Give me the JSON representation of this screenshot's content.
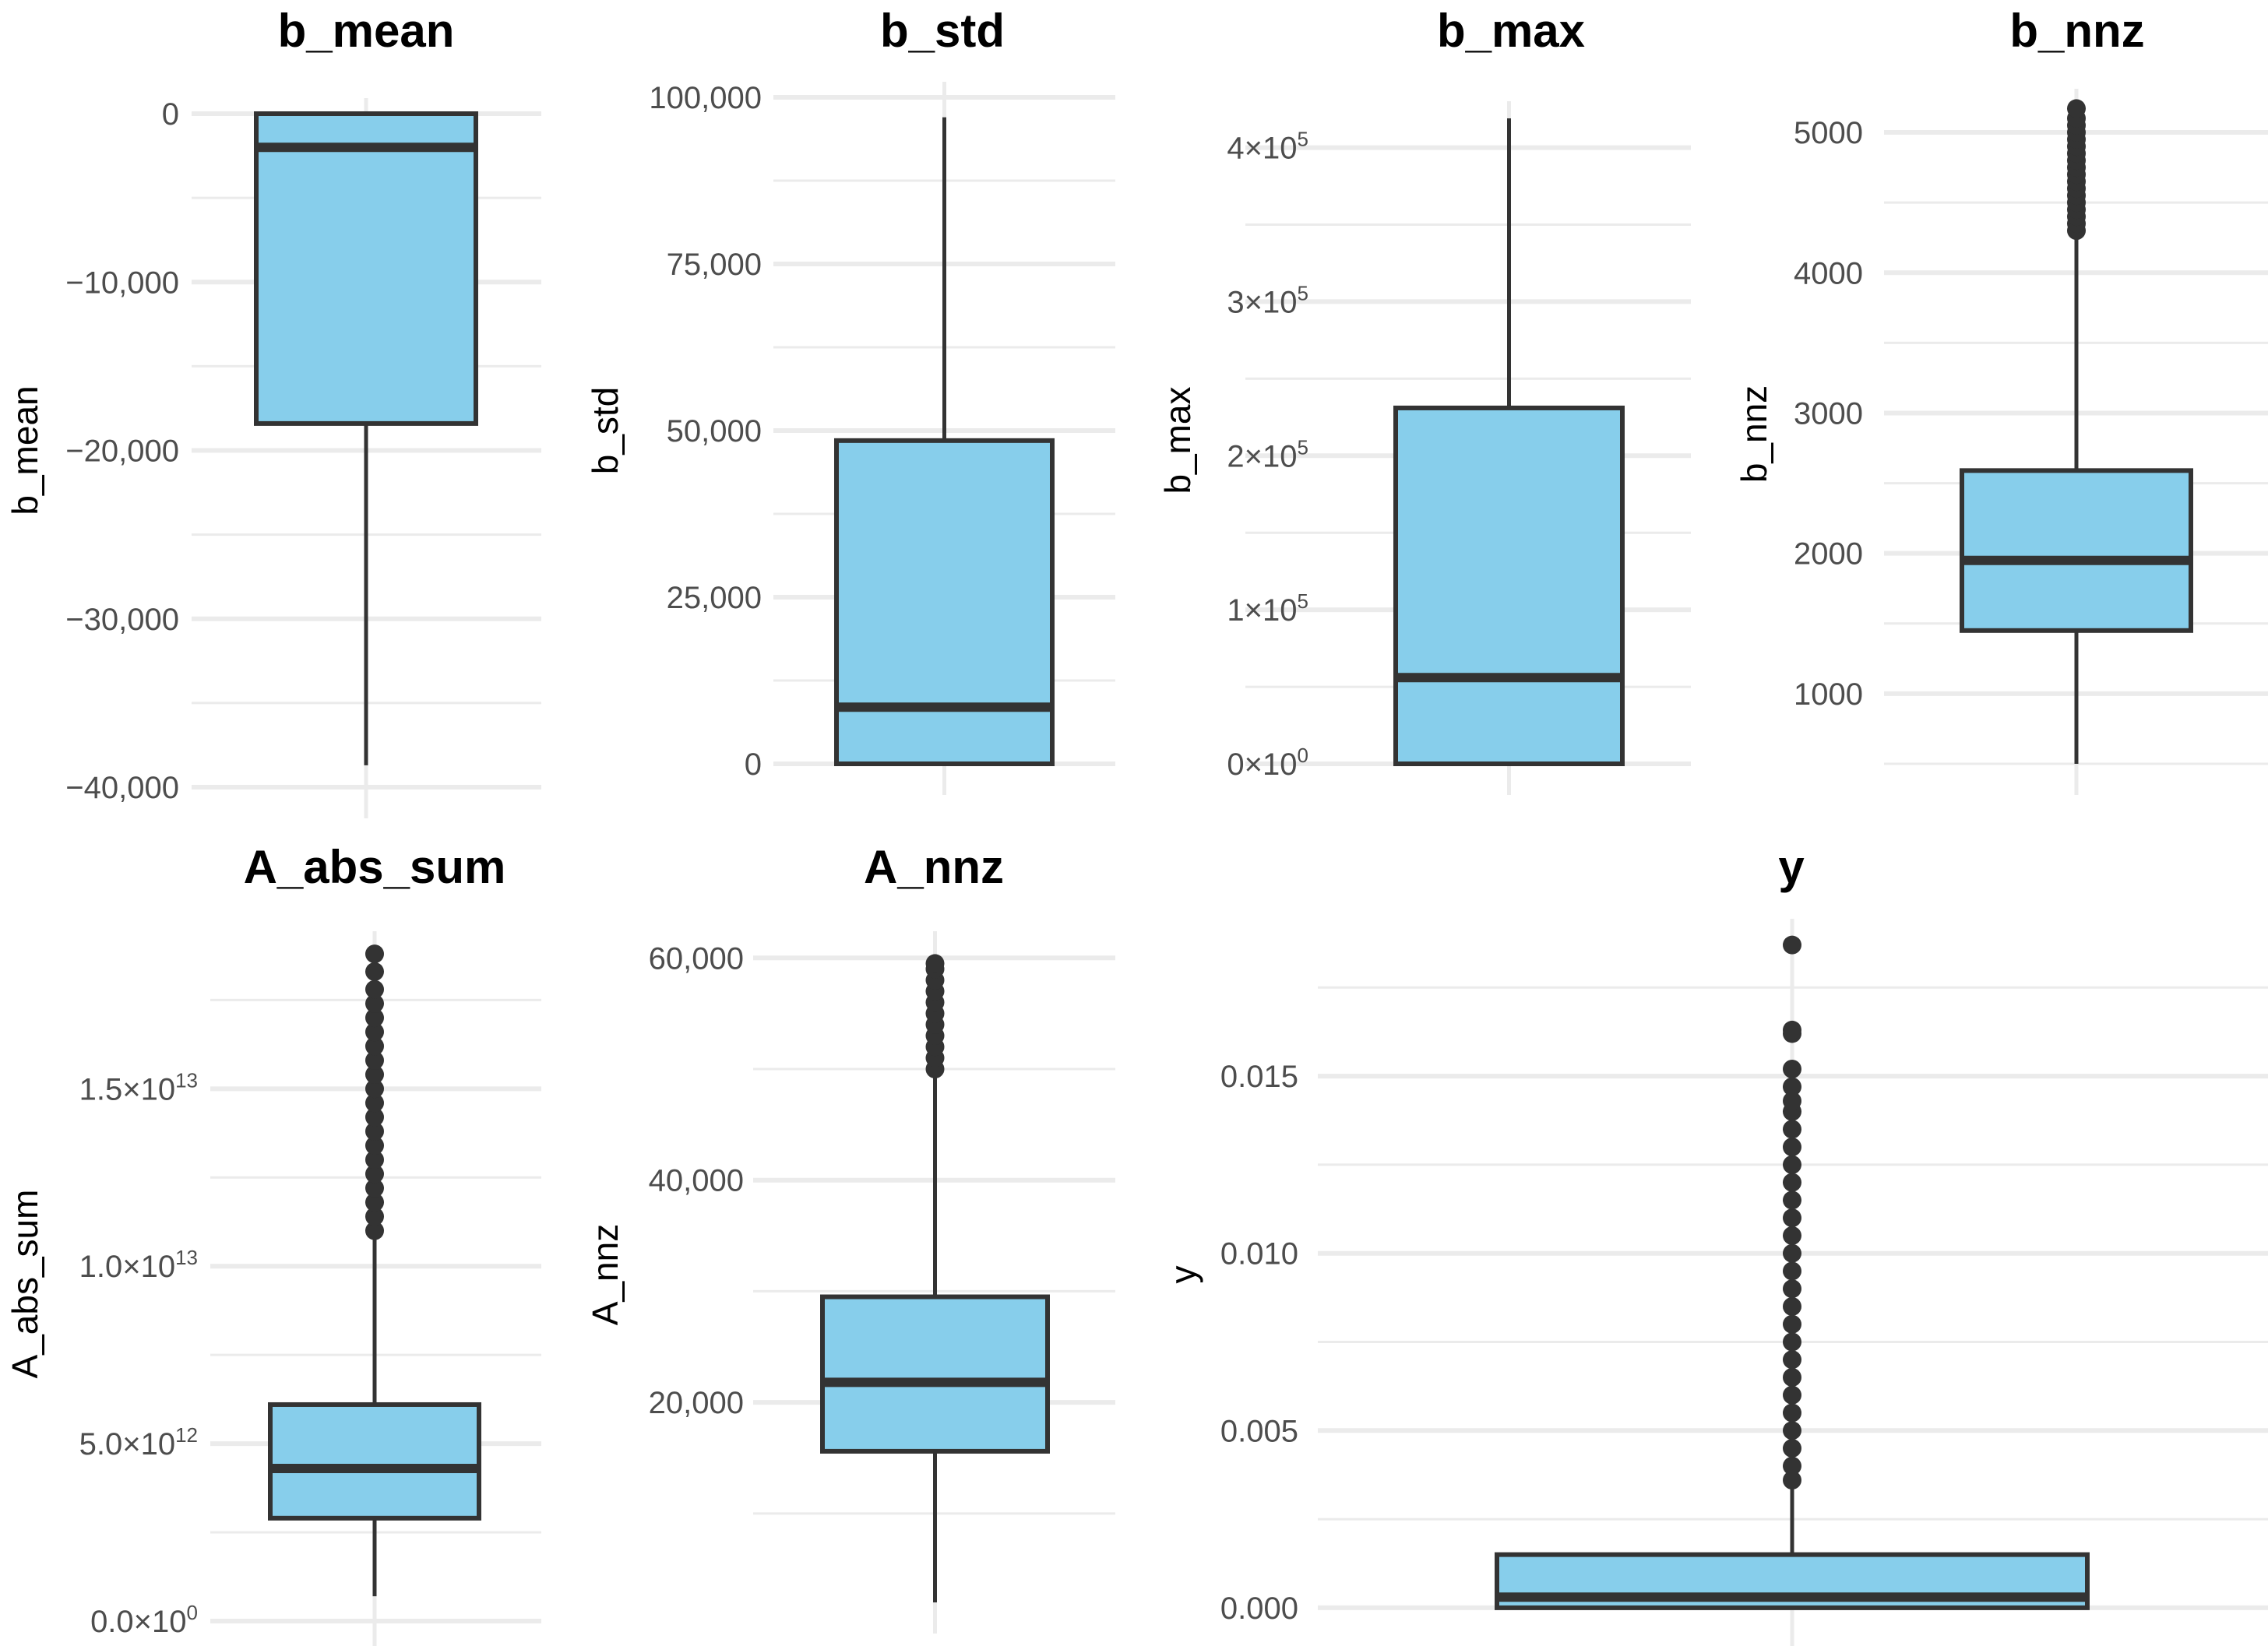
{
  "figure_title": "",
  "chart_data": [
    {
      "type": "boxplot",
      "title": "b_mean",
      "ylabel": "b_mean",
      "xlabel": "",
      "ylim": [
        -40000,
        0
      ],
      "ticks": [
        {
          "value": 0,
          "label": "0"
        },
        {
          "value": -10000,
          "label": "−10,000"
        },
        {
          "value": -20000,
          "label": "−20,000"
        },
        {
          "value": -30000,
          "label": "−30,000"
        },
        {
          "value": -40000,
          "label": "−40,000"
        }
      ],
      "minor_ticks": [
        -5000,
        -15000,
        -25000,
        -35000
      ],
      "box": {
        "whisker_low": -38700,
        "q1": -18400,
        "median": -2000,
        "q3": 0,
        "whisker_high": 0
      },
      "outliers": []
    },
    {
      "type": "boxplot",
      "title": "b_std",
      "ylabel": "b_std",
      "xlabel": "",
      "ylim": [
        0,
        100000
      ],
      "ticks": [
        {
          "value": 0,
          "label": "0"
        },
        {
          "value": 25000,
          "label": "25,000"
        },
        {
          "value": 50000,
          "label": "50,000"
        },
        {
          "value": 75000,
          "label": "75,000"
        },
        {
          "value": 100000,
          "label": "100,000"
        }
      ],
      "minor_ticks": [
        12500,
        37500,
        62500,
        87500
      ],
      "box": {
        "whisker_low": 0,
        "q1": 0,
        "median": 8500,
        "q3": 48500,
        "whisker_high": 97000
      },
      "outliers": []
    },
    {
      "type": "boxplot",
      "title": "b_max",
      "ylabel": "b_max",
      "xlabel": "",
      "ylim": [
        0,
        420000
      ],
      "ticks": [
        {
          "value": 0,
          "label": "0×10",
          "sup": "0"
        },
        {
          "value": 100000,
          "label": "1×10",
          "sup": "5"
        },
        {
          "value": 200000,
          "label": "2×10",
          "sup": "5"
        },
        {
          "value": 300000,
          "label": "3×10",
          "sup": "5"
        },
        {
          "value": 400000,
          "label": "4×10",
          "sup": "5"
        }
      ],
      "minor_ticks": [
        50000,
        150000,
        250000,
        350000
      ],
      "box": {
        "whisker_low": 0,
        "q1": 0,
        "median": 56000,
        "q3": 231000,
        "whisker_high": 419000
      },
      "outliers": []
    },
    {
      "type": "boxplot",
      "title": "b_nnz",
      "ylabel": "b_nnz",
      "xlabel": "",
      "ylim": [
        500,
        5200
      ],
      "ticks": [
        {
          "value": 1000,
          "label": "1000"
        },
        {
          "value": 2000,
          "label": "2000"
        },
        {
          "value": 3000,
          "label": "3000"
        },
        {
          "value": 4000,
          "label": "4000"
        },
        {
          "value": 5000,
          "label": "5000"
        }
      ],
      "minor_ticks": [
        500,
        1500,
        2500,
        3500,
        4500
      ],
      "box": {
        "whisker_low": 500,
        "q1": 1450,
        "median": 1950,
        "q3": 2590,
        "whisker_high": 4270
      },
      "outliers": [
        4300,
        4350,
        4400,
        4450,
        4500,
        4550,
        4600,
        4650,
        4700,
        4750,
        4800,
        4850,
        4900,
        4950,
        5000,
        5050,
        5100,
        5170
      ]
    },
    {
      "type": "boxplot",
      "title": "A_abs_sum",
      "ylabel": "A_abs_sum",
      "xlabel": "",
      "ylim": [
        0,
        19000000000000
      ],
      "ticks": [
        {
          "value": 0,
          "label": "0.0×10",
          "sup": "0"
        },
        {
          "value": 5000000000000,
          "label": "5.0×10",
          "sup": "12"
        },
        {
          "value": 10000000000000,
          "label": "1.0×10",
          "sup": "13"
        },
        {
          "value": 15000000000000,
          "label": "1.5×10",
          "sup": "13"
        }
      ],
      "minor_ticks": [
        2500000000000,
        7500000000000,
        12500000000000,
        17500000000000
      ],
      "box": {
        "whisker_low": 700000000000,
        "q1": 2900000000000,
        "median": 4300000000000,
        "q3": 6100000000000,
        "whisker_high": 10800000000000
      },
      "outliers": [
        11000000000000,
        11400000000000,
        11800000000000,
        12200000000000,
        12600000000000,
        13000000000000,
        13400000000000,
        13800000000000,
        14200000000000,
        14600000000000,
        15000000000000,
        15400000000000,
        15800000000000,
        16200000000000,
        16600000000000,
        17000000000000,
        17400000000000,
        17800000000000,
        18300000000000,
        18800000000000
      ]
    },
    {
      "type": "boxplot",
      "title": "A_nnz",
      "ylabel": "A_nnz",
      "xlabel": "",
      "ylim": [
        2000,
        61000
      ],
      "ticks": [
        {
          "value": 20000,
          "label": "20,000"
        },
        {
          "value": 40000,
          "label": "40,000"
        },
        {
          "value": 60000,
          "label": "60,000"
        }
      ],
      "minor_ticks": [
        10000,
        30000,
        50000
      ],
      "box": {
        "whisker_low": 2000,
        "q1": 15600,
        "median": 21800,
        "q3": 29500,
        "whisker_high": 49500
      },
      "outliers": [
        50000,
        51000,
        52000,
        53000,
        54000,
        55000,
        56000,
        57000,
        58000,
        59000,
        59500
      ]
    },
    {
      "type": "boxplot",
      "title": "y",
      "ylabel": "y",
      "xlabel": "",
      "ylim": [
        -0.0002,
        0.019
      ],
      "ticks": [
        {
          "value": 0,
          "label": "0.000"
        },
        {
          "value": 0.005,
          "label": "0.005"
        },
        {
          "value": 0.01,
          "label": "0.010"
        },
        {
          "value": 0.015,
          "label": "0.015"
        }
      ],
      "minor_ticks": [
        0.0025,
        0.0075,
        0.0125,
        0.0175
      ],
      "box": {
        "whisker_low": 0,
        "q1": 0,
        "median": 0.0003,
        "q3": 0.0015,
        "whisker_high": 0.0035
      },
      "outliers": [
        0.0036,
        0.004,
        0.0045,
        0.005,
        0.0055,
        0.006,
        0.0065,
        0.007,
        0.0075,
        0.008,
        0.0085,
        0.009,
        0.0095,
        0.01,
        0.0105,
        0.011,
        0.0115,
        0.012,
        0.0125,
        0.013,
        0.0135,
        0.014,
        0.0143,
        0.0147,
        0.0152,
        0.0162,
        0.0163,
        0.0187
      ]
    }
  ],
  "colors": {
    "box_fill": "#87CEEB",
    "box_stroke": "#333333",
    "grid": "#ebebeb",
    "tick_text": "#4d4d4d"
  }
}
